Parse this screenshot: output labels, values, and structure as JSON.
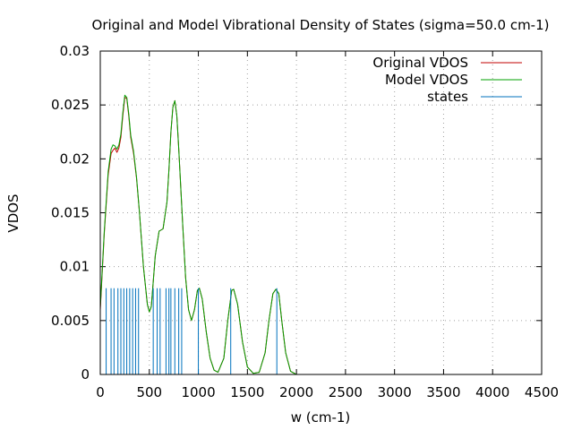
{
  "chart_data": {
    "type": "line",
    "title": "Original and Model Vibrational Density of States (sigma=50.0 cm-1)",
    "xlabel": "w (cm-1)",
    "ylabel": "VDOS",
    "xlim": [
      0,
      4500
    ],
    "ylim": [
      0,
      0.03
    ],
    "xticks": [
      "0",
      "500",
      "1000",
      "1500",
      "2000",
      "2500",
      "3000",
      "3500",
      "4000",
      "4500"
    ],
    "yticks": [
      "0",
      "0.005",
      "0.01",
      "0.015",
      "0.02",
      "0.025",
      "0.03"
    ],
    "grid": true,
    "legend_position": "top-right",
    "series": [
      {
        "name": "Original VDOS",
        "color": "#c00000",
        "style": "line",
        "x": [
          0,
          40,
          80,
          110,
          130,
          150,
          170,
          190,
          210,
          230,
          250,
          270,
          290,
          310,
          340,
          370,
          400,
          440,
          480,
          500,
          520,
          560,
          600,
          640,
          680,
          700,
          720,
          740,
          760,
          780,
          800,
          840,
          870,
          900,
          930,
          960,
          990,
          1010,
          1040,
          1080,
          1120,
          1160,
          1200,
          1260,
          1300,
          1340,
          1360,
          1400,
          1450,
          1500,
          1560,
          1620,
          1680,
          1720,
          1760,
          1790,
          1820,
          1850,
          1890,
          1940,
          2000
        ],
        "y": [
          0.006,
          0.013,
          0.0185,
          0.0205,
          0.0208,
          0.021,
          0.0206,
          0.021,
          0.022,
          0.024,
          0.0257,
          0.0256,
          0.024,
          0.022,
          0.0205,
          0.0182,
          0.015,
          0.01,
          0.0065,
          0.0058,
          0.0063,
          0.011,
          0.0133,
          0.0135,
          0.016,
          0.019,
          0.0225,
          0.0248,
          0.0254,
          0.024,
          0.021,
          0.014,
          0.009,
          0.006,
          0.005,
          0.006,
          0.0078,
          0.008,
          0.007,
          0.004,
          0.0015,
          0.0004,
          0.0002,
          0.0015,
          0.005,
          0.0078,
          0.0079,
          0.0065,
          0.003,
          0.0007,
          0.0001,
          0.0002,
          0.002,
          0.005,
          0.0075,
          0.0079,
          0.0075,
          0.005,
          0.002,
          0.0003,
          0.0
        ]
      },
      {
        "name": "Model VDOS",
        "color": "#00a000",
        "style": "line",
        "x": [
          0,
          40,
          80,
          110,
          130,
          150,
          170,
          190,
          210,
          230,
          250,
          270,
          290,
          310,
          340,
          370,
          400,
          440,
          480,
          500,
          520,
          560,
          600,
          640,
          680,
          700,
          720,
          740,
          760,
          780,
          800,
          840,
          870,
          900,
          930,
          960,
          990,
          1010,
          1040,
          1080,
          1120,
          1160,
          1200,
          1260,
          1300,
          1340,
          1360,
          1400,
          1450,
          1500,
          1560,
          1620,
          1680,
          1720,
          1760,
          1790,
          1820,
          1850,
          1890,
          1940,
          2000
        ],
        "y": [
          0.0062,
          0.0132,
          0.0188,
          0.0209,
          0.0213,
          0.0212,
          0.0209,
          0.0213,
          0.0223,
          0.0243,
          0.0259,
          0.0257,
          0.0242,
          0.0222,
          0.0207,
          0.0183,
          0.015,
          0.01,
          0.0065,
          0.0058,
          0.0063,
          0.011,
          0.0133,
          0.0135,
          0.016,
          0.019,
          0.0225,
          0.0248,
          0.0254,
          0.024,
          0.021,
          0.014,
          0.009,
          0.006,
          0.005,
          0.006,
          0.0078,
          0.008,
          0.007,
          0.004,
          0.0015,
          0.0004,
          0.0002,
          0.0015,
          0.005,
          0.0078,
          0.0079,
          0.0065,
          0.003,
          0.0007,
          0.0001,
          0.0002,
          0.002,
          0.005,
          0.0075,
          0.0079,
          0.0075,
          0.005,
          0.002,
          0.0003,
          0.0
        ]
      },
      {
        "name": "states",
        "color": "#0072bd",
        "style": "impulses",
        "x": [
          60,
          110,
          140,
          180,
          210,
          240,
          270,
          300,
          330,
          360,
          390,
          540,
          580,
          610,
          670,
          700,
          720,
          760,
          800,
          830,
          1000,
          1330,
          1800
        ],
        "y": [
          0.008,
          0.008,
          0.008,
          0.008,
          0.008,
          0.008,
          0.008,
          0.008,
          0.008,
          0.008,
          0.008,
          0.008,
          0.008,
          0.008,
          0.008,
          0.008,
          0.008,
          0.008,
          0.008,
          0.008,
          0.008,
          0.008,
          0.008
        ]
      }
    ]
  }
}
